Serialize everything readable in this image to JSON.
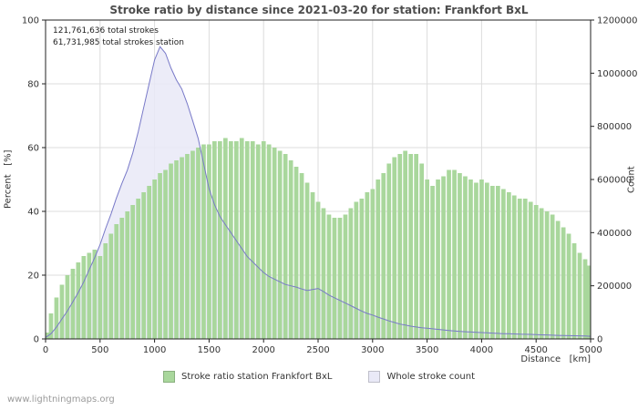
{
  "page": {
    "watermark": "www.lightningmaps.org"
  },
  "chart": {
    "title": "Stroke ratio by distance since 2021-03-20 for station: Frankfort BxL",
    "annotation": {
      "line1": "121,761,636 total strokes",
      "line2": "61,731,985 total strokes station"
    },
    "axes": {
      "left_label": "Percent   [%]",
      "right_label": "Count",
      "x_label": "Distance   [km]"
    },
    "legend": [
      {
        "label": "Stroke ratio station Frankfort BxL",
        "color": "#a9d79c"
      },
      {
        "label": "Whole stroke count",
        "color": "#e9e9f7"
      }
    ]
  },
  "chart_data": {
    "type": "composite",
    "title": "Stroke ratio by distance since 2021-03-20 for station: Frankfort BxL",
    "xlabel": "Distance [km]",
    "x_range": [
      0,
      5000
    ],
    "x_ticks": [
      0,
      500,
      1000,
      1500,
      2000,
      2500,
      3000,
      3500,
      4000,
      4500,
      5000
    ],
    "left_axis": {
      "label": "Percent [%]",
      "min": 0,
      "max": 100,
      "ticks": [
        0,
        20,
        40,
        60,
        80,
        100
      ]
    },
    "right_axis": {
      "label": "Count",
      "min": 0,
      "max": 1200000,
      "ticks": [
        0,
        200000,
        400000,
        600000,
        800000,
        1000000,
        1200000
      ]
    },
    "grid": true,
    "legend_position": "bottom-center",
    "x": [
      0,
      50,
      100,
      150,
      200,
      250,
      300,
      350,
      400,
      450,
      500,
      550,
      600,
      650,
      700,
      750,
      800,
      850,
      900,
      950,
      1000,
      1050,
      1100,
      1150,
      1200,
      1250,
      1300,
      1350,
      1400,
      1450,
      1500,
      1550,
      1600,
      1650,
      1700,
      1750,
      1800,
      1850,
      1900,
      1950,
      2000,
      2050,
      2100,
      2150,
      2200,
      2250,
      2300,
      2350,
      2400,
      2450,
      2500,
      2550,
      2600,
      2650,
      2700,
      2750,
      2800,
      2850,
      2900,
      2950,
      3000,
      3050,
      3100,
      3150,
      3200,
      3250,
      3300,
      3350,
      3400,
      3450,
      3500,
      3550,
      3600,
      3650,
      3700,
      3750,
      3800,
      3850,
      3900,
      3950,
      4000,
      4050,
      4100,
      4150,
      4200,
      4250,
      4300,
      4350,
      4400,
      4450,
      4500,
      4550,
      4600,
      4650,
      4700,
      4750,
      4800,
      4850,
      4900,
      4950,
      5000
    ],
    "series": [
      {
        "name": "Stroke ratio station Frankfort BxL",
        "type": "bar",
        "axis": "left",
        "color": "#a9d79c",
        "values": [
          2,
          8,
          13,
          17,
          20,
          22,
          24,
          26,
          27,
          28,
          26,
          30,
          33,
          36,
          38,
          40,
          42,
          44,
          46,
          48,
          50,
          52,
          53,
          55,
          56,
          57,
          58,
          59,
          60,
          61,
          61,
          62,
          62,
          63,
          62,
          62,
          63,
          62,
          62,
          61,
          62,
          61,
          60,
          59,
          58,
          56,
          54,
          52,
          49,
          46,
          43,
          41,
          39,
          38,
          38,
          39,
          41,
          43,
          44,
          46,
          47,
          50,
          52,
          55,
          57,
          58,
          59,
          58,
          58,
          55,
          50,
          48,
          50,
          51,
          53,
          53,
          52,
          51,
          50,
          49,
          50,
          49,
          48,
          48,
          47,
          46,
          45,
          44,
          44,
          43,
          42,
          41,
          40,
          39,
          37,
          35,
          33,
          30,
          27,
          25,
          23
        ]
      },
      {
        "name": "Whole stroke count",
        "type": "area-line",
        "axis": "right",
        "line_color": "#7879c8",
        "fill_color": "#e9e9f7",
        "values": [
          5000,
          20000,
          45000,
          75000,
          105000,
          140000,
          175000,
          215000,
          260000,
          305000,
          355000,
          415000,
          470000,
          530000,
          585000,
          635000,
          700000,
          780000,
          870000,
          960000,
          1050000,
          1100000,
          1075000,
          1020000,
          975000,
          940000,
          885000,
          820000,
          755000,
          660000,
          565000,
          505000,
          460000,
          430000,
          400000,
          370000,
          340000,
          310000,
          290000,
          270000,
          250000,
          235000,
          225000,
          215000,
          205000,
          200000,
          195000,
          188000,
          182000,
          186000,
          190000,
          178000,
          165000,
          155000,
          145000,
          135000,
          125000,
          115000,
          105000,
          96000,
          90000,
          82000,
          75000,
          68000,
          62000,
          56000,
          52000,
          48000,
          45000,
          42000,
          40000,
          38000,
          36000,
          34000,
          32000,
          30000,
          28000,
          27000,
          26000,
          25000,
          24000,
          23000,
          22000,
          21000,
          20000,
          19500,
          19000,
          18000,
          17500,
          17000,
          16000,
          15500,
          15000,
          14000,
          13500,
          13000,
          12500,
          12000,
          11500,
          11000,
          10000
        ]
      }
    ]
  }
}
